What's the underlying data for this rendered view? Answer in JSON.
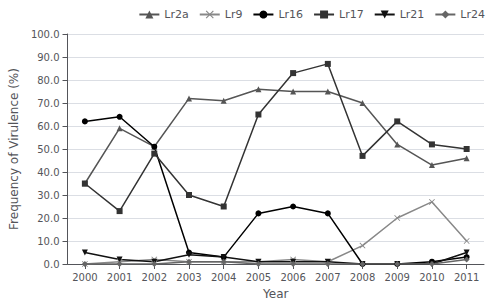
{
  "chart_data": {
    "type": "line",
    "xlabel": "Year",
    "ylabel": "Frequency of Virulence (%)",
    "x": [
      2000,
      2001,
      2002,
      2003,
      2004,
      2005,
      2006,
      2007,
      2008,
      2009,
      2010,
      2011
    ],
    "series": [
      {
        "name": "Lr2a",
        "color": "#555555",
        "marker": "triangle-up",
        "line_style": "solid",
        "values": [
          35,
          59,
          51,
          72,
          71,
          76,
          75,
          75,
          70,
          52,
          43,
          46
        ]
      },
      {
        "name": "Lr9",
        "color": "#888888",
        "marker": "x",
        "line_style": "solid",
        "values": [
          0,
          1,
          2,
          1,
          1,
          1,
          2,
          1,
          8,
          20,
          27,
          10
        ]
      },
      {
        "name": "Lr16",
        "color": "#000000",
        "marker": "circle",
        "line_style": "solid",
        "values": [
          62,
          64,
          51,
          5,
          3,
          22,
          25,
          22,
          0,
          0,
          1,
          3
        ]
      },
      {
        "name": "Lr17",
        "color": "#333333",
        "marker": "square",
        "line_style": "solid",
        "values": [
          35,
          23,
          48,
          30,
          25,
          65,
          83,
          87,
          47,
          62,
          52,
          50
        ]
      },
      {
        "name": "Lr21",
        "color": "#111111",
        "marker": "triangle-down",
        "line_style": "solid",
        "values": [
          5,
          2,
          1,
          4,
          3,
          1,
          1,
          1,
          0,
          0,
          0,
          5
        ]
      },
      {
        "name": "Lr24",
        "color": "#666666",
        "marker": "diamond",
        "line_style": "solid",
        "values": [
          0,
          0,
          0,
          1,
          1,
          0,
          0,
          0,
          0,
          0,
          0,
          2
        ]
      }
    ],
    "xlim": [
      1999.5,
      2011.5
    ],
    "xticks": [
      2000,
      2001,
      2002,
      2003,
      2004,
      2005,
      2006,
      2007,
      2008,
      2009,
      2010,
      2011
    ],
    "ylim": [
      0,
      100
    ],
    "yticks": [
      {
        "value": 0,
        "label": "0.0"
      },
      {
        "value": 10,
        "label": "10.0"
      },
      {
        "value": 20,
        "label": "20.0"
      },
      {
        "value": 30,
        "label": "30.0"
      },
      {
        "value": 40,
        "label": "40.0"
      },
      {
        "value": 50,
        "label": "50.0"
      },
      {
        "value": 60,
        "label": "60.0"
      },
      {
        "value": 70,
        "label": "70.0"
      },
      {
        "value": 80,
        "label": "80.0"
      },
      {
        "value": 90,
        "label": "90.0"
      },
      {
        "value": 100,
        "label": "100.0"
      }
    ],
    "grid": true,
    "legend": "upper right"
  }
}
